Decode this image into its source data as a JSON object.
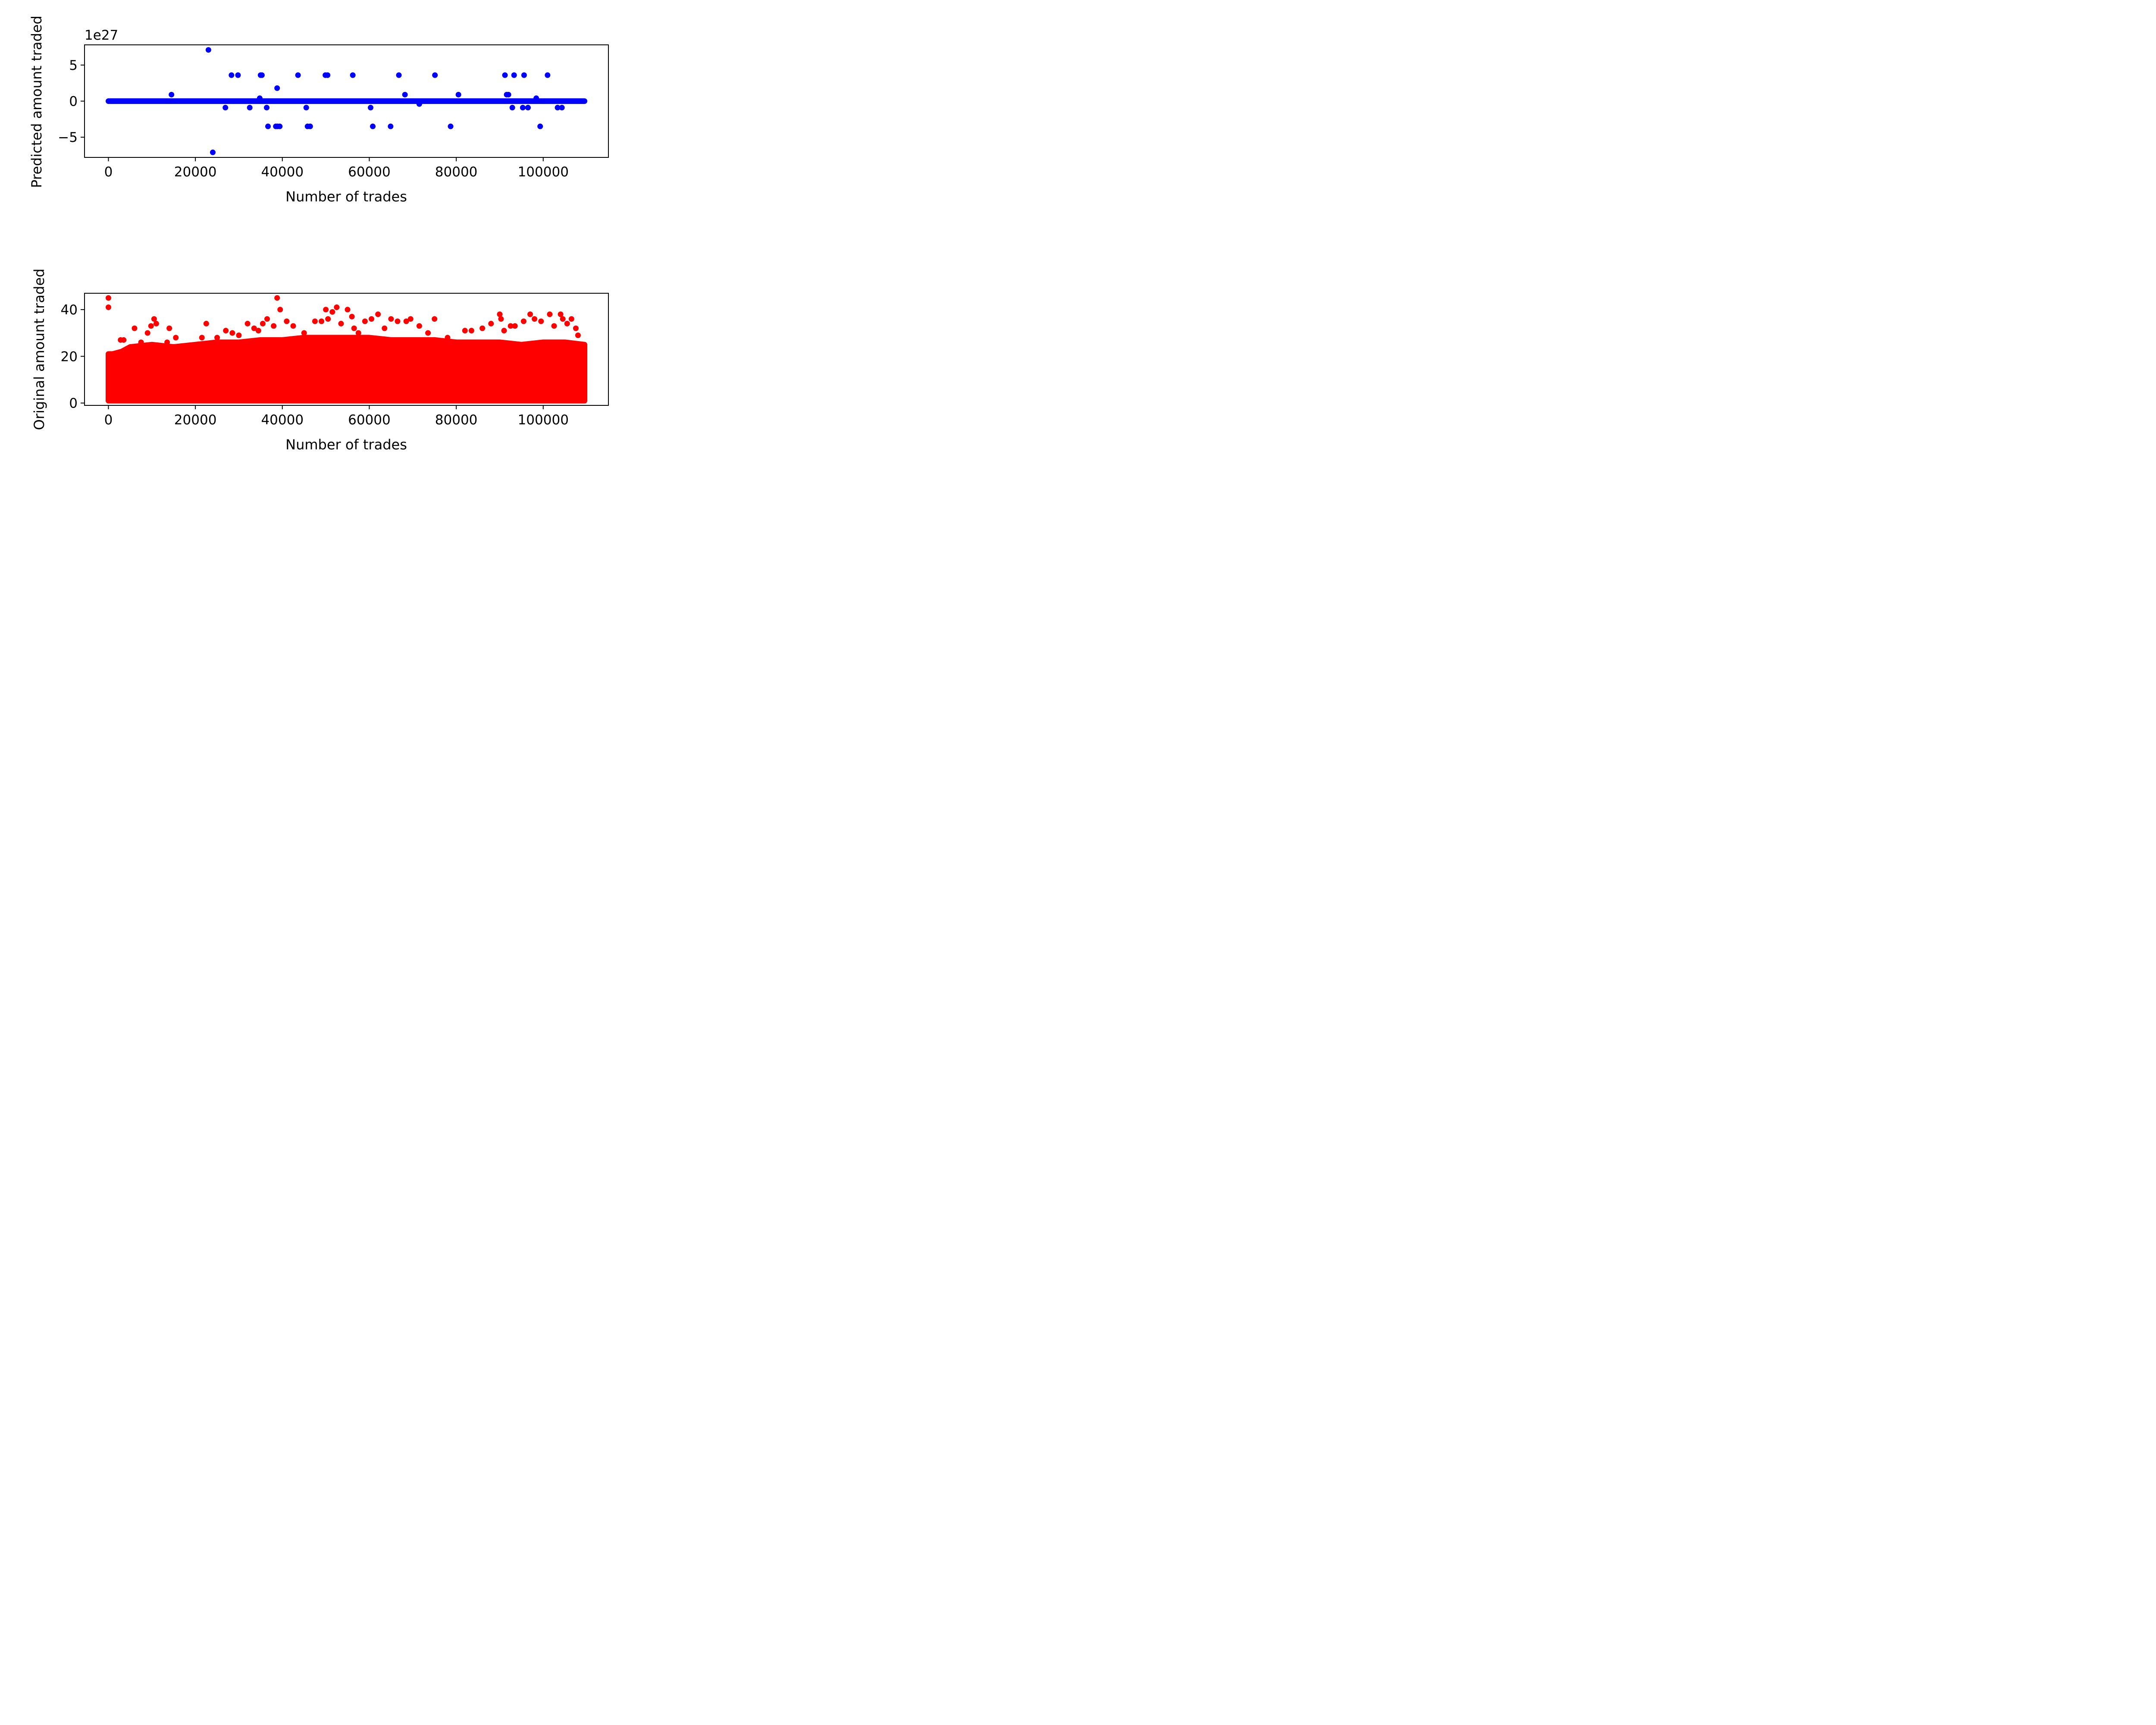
{
  "colors": {
    "predicted": "#0000ff",
    "original": "#ff0000",
    "axis": "#000000"
  },
  "chart_data": [
    {
      "type": "scatter",
      "xlabel": "Number of trades",
      "ylabel": "Predicted amount traded",
      "offset_text": "1e27",
      "y_scale_multiplier": 1e+27,
      "xlim": [
        -5500,
        115000
      ],
      "ylim": [
        -7.8,
        7.8
      ],
      "xticks": [
        0,
        20000,
        40000,
        60000,
        80000,
        100000
      ],
      "xtick_labels": [
        "0",
        "20000",
        "40000",
        "60000",
        "80000",
        "100000"
      ],
      "yticks": [
        5,
        0,
        -5
      ],
      "ytick_labels": [
        "5",
        "0",
        "−5"
      ],
      "grid": false,
      "series": [
        {
          "color": "predicted",
          "dense_band": {
            "x_range": [
              0,
              109500
            ],
            "y": 0
          },
          "x": [
            14500,
            23000,
            24000,
            26900,
            28300,
            29800,
            32500,
            34800,
            35000,
            35300,
            36400,
            36700,
            38500,
            38800,
            38900,
            39400,
            43600,
            45500,
            45800,
            46400,
            49900,
            50400,
            56200,
            60300,
            60800,
            64900,
            66800,
            68200,
            71500,
            75100,
            78700,
            80500,
            91200,
            91600,
            92000,
            92900,
            93300,
            95300,
            95600,
            96500,
            98400,
            99300,
            101000,
            103300,
            104300
          ],
          "y": [
            0.9,
            7.1,
            -7.1,
            -0.9,
            3.6,
            3.6,
            -0.9,
            0.4,
            3.6,
            3.6,
            -0.9,
            -3.5,
            -3.5,
            1.8,
            -3.5,
            -3.5,
            3.6,
            -0.9,
            -3.5,
            -3.5,
            3.6,
            3.6,
            3.6,
            -0.9,
            -3.5,
            -3.5,
            3.6,
            0.9,
            -0.4,
            3.6,
            -3.5,
            0.9,
            3.6,
            0.9,
            0.9,
            -0.9,
            3.6,
            -0.9,
            3.6,
            -0.9,
            0.4,
            -3.5,
            3.6,
            -0.9,
            -0.9
          ]
        }
      ]
    },
    {
      "type": "scatter",
      "xlabel": "Number of trades",
      "ylabel": "Original amount traded",
      "xlim": [
        -5500,
        115000
      ],
      "ylim": [
        -1,
        47
      ],
      "xticks": [
        0,
        20000,
        40000,
        60000,
        80000,
        100000
      ],
      "xtick_labels": [
        "0",
        "20000",
        "40000",
        "60000",
        "80000",
        "100000"
      ],
      "yticks": [
        40,
        20,
        0
      ],
      "ytick_labels": [
        "40",
        "20",
        "0"
      ],
      "grid": false,
      "series": [
        {
          "color": "original",
          "dense_region": {
            "x_range": [
              0,
              109500
            ],
            "y_range": [
              1,
              22
            ]
          },
          "envelope": {
            "x": [
              0,
              1000,
              3000,
              5000,
              10000,
              15000,
              20000,
              25000,
              30000,
              35000,
              40000,
              45000,
              50000,
              55000,
              60000,
              65000,
              70000,
              75000,
              80000,
              85000,
              90000,
              95000,
              100000,
              105000,
              109500
            ],
            "y_max": [
              21,
              21,
              22,
              24,
              25,
              24,
              25,
              26,
              26,
              27,
              27,
              28,
              28,
              28,
              28,
              27,
              27,
              27,
              26,
              26,
              26,
              25,
              26,
              26,
              25
            ]
          },
          "x": [
            0,
            0,
            2800,
            3500,
            6000,
            7500,
            9000,
            9800,
            10500,
            11000,
            13500,
            14000,
            15500,
            18500,
            21500,
            22500,
            25000,
            27000,
            28500,
            30000,
            32000,
            33500,
            34500,
            35500,
            36500,
            38000,
            38800,
            39500,
            41000,
            42500,
            45000,
            47500,
            49000,
            50000,
            50500,
            51500,
            52500,
            53500,
            55000,
            56000,
            56500,
            57500,
            59000,
            60500,
            62000,
            63500,
            65000,
            66500,
            68500,
            69500,
            71500,
            73500,
            75000,
            76500,
            78000,
            80000,
            82000,
            83500,
            86000,
            88000,
            90000,
            90300,
            91000,
            92500,
            93500,
            95500,
            97000,
            98000,
            99500,
            101500,
            102500,
            104000,
            104500,
            105500,
            106500,
            107500,
            108000
          ],
          "y": [
            45,
            41,
            27,
            27,
            32,
            26,
            30,
            33,
            36,
            34,
            26,
            32,
            28,
            23,
            28,
            34,
            28,
            31,
            30,
            29,
            34,
            32,
            31,
            34,
            36,
            33,
            45,
            40,
            35,
            33,
            30,
            35,
            35,
            40,
            36,
            39,
            41,
            34,
            40,
            37,
            32,
            30,
            35,
            36,
            38,
            32,
            36,
            35,
            35,
            36,
            33,
            30,
            36,
            26,
            28,
            26,
            31,
            31,
            32,
            34,
            38,
            36,
            31,
            33,
            33,
            35,
            38,
            36,
            35,
            38,
            33,
            38,
            36,
            34,
            36,
            32,
            29
          ]
        }
      ]
    }
  ]
}
